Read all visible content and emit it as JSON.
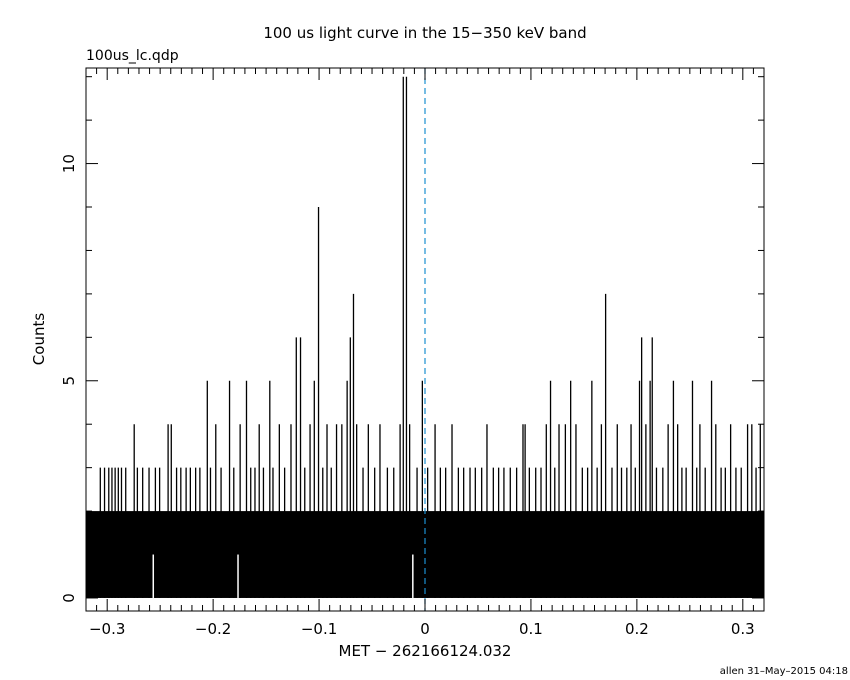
{
  "chart_data": {
    "type": "bar",
    "title": "100 us light curve in the 15−350 keV band",
    "subtitle": "100us_lc.qdp",
    "xlabel": "MET − 262166124.032",
    "ylabel": "Counts",
    "footer": "allen 31–May–2015 04:18",
    "xlim": [
      -0.32,
      0.32
    ],
    "ylim": [
      -0.3,
      12.2
    ],
    "x_ticks": [
      -0.3,
      -0.2,
      -0.1,
      0,
      0.1,
      0.2,
      0.3
    ],
    "x_tick_labels": [
      "−0.3",
      "−0.2",
      "−0.1",
      "0",
      "0.1",
      "0.2",
      "0.3"
    ],
    "y_ticks": [
      0,
      5,
      10
    ],
    "y_tick_labels": [
      "0",
      "5",
      "10"
    ],
    "bin_width": 0.0001,
    "marker_line": {
      "x": 0,
      "color": "#1a8fd0",
      "style": "dashed"
    },
    "baseline_level": 2,
    "zero_bins": [
      -0.2565,
      -0.1765,
      -0.0115
    ],
    "spikes": [
      {
        "x": -0.3065,
        "y": 3
      },
      {
        "x": -0.3025,
        "y": 3
      },
      {
        "x": -0.2985,
        "y": 3
      },
      {
        "x": -0.2955,
        "y": 3
      },
      {
        "x": -0.2925,
        "y": 3
      },
      {
        "x": -0.2895,
        "y": 3
      },
      {
        "x": -0.2865,
        "y": 3
      },
      {
        "x": -0.2825,
        "y": 3
      },
      {
        "x": -0.2745,
        "y": 4
      },
      {
        "x": -0.2715,
        "y": 3
      },
      {
        "x": -0.2665,
        "y": 3
      },
      {
        "x": -0.2605,
        "y": 3
      },
      {
        "x": -0.2545,
        "y": 3
      },
      {
        "x": -0.2505,
        "y": 3
      },
      {
        "x": -0.2425,
        "y": 4
      },
      {
        "x": -0.2395,
        "y": 4
      },
      {
        "x": -0.2345,
        "y": 3
      },
      {
        "x": -0.2305,
        "y": 3
      },
      {
        "x": -0.2255,
        "y": 3
      },
      {
        "x": -0.2215,
        "y": 3
      },
      {
        "x": -0.2165,
        "y": 3
      },
      {
        "x": -0.2125,
        "y": 3
      },
      {
        "x": -0.2055,
        "y": 5
      },
      {
        "x": -0.2025,
        "y": 3
      },
      {
        "x": -0.1975,
        "y": 4
      },
      {
        "x": -0.1925,
        "y": 3
      },
      {
        "x": -0.1845,
        "y": 5
      },
      {
        "x": -0.1805,
        "y": 3
      },
      {
        "x": -0.1745,
        "y": 4
      },
      {
        "x": -0.1685,
        "y": 5
      },
      {
        "x": -0.1645,
        "y": 3
      },
      {
        "x": -0.1605,
        "y": 3
      },
      {
        "x": -0.1565,
        "y": 4
      },
      {
        "x": -0.1525,
        "y": 3
      },
      {
        "x": -0.1465,
        "y": 5
      },
      {
        "x": -0.1435,
        "y": 3
      },
      {
        "x": -0.1375,
        "y": 4
      },
      {
        "x": -0.1325,
        "y": 3
      },
      {
        "x": -0.1265,
        "y": 4
      },
      {
        "x": -0.1215,
        "y": 6
      },
      {
        "x": -0.1175,
        "y": 6
      },
      {
        "x": -0.1135,
        "y": 3
      },
      {
        "x": -0.1085,
        "y": 4
      },
      {
        "x": -0.1045,
        "y": 5
      },
      {
        "x": -0.1005,
        "y": 9
      },
      {
        "x": -0.0965,
        "y": 3
      },
      {
        "x": -0.0925,
        "y": 4
      },
      {
        "x": -0.0885,
        "y": 3
      },
      {
        "x": -0.0835,
        "y": 4
      },
      {
        "x": -0.0785,
        "y": 4
      },
      {
        "x": -0.0735,
        "y": 5
      },
      {
        "x": -0.0705,
        "y": 6
      },
      {
        "x": -0.0675,
        "y": 7
      },
      {
        "x": -0.0645,
        "y": 4
      },
      {
        "x": -0.0585,
        "y": 3
      },
      {
        "x": -0.0535,
        "y": 4
      },
      {
        "x": -0.0475,
        "y": 3
      },
      {
        "x": -0.0425,
        "y": 4
      },
      {
        "x": -0.0355,
        "y": 3
      },
      {
        "x": -0.0295,
        "y": 3
      },
      {
        "x": -0.0235,
        "y": 4
      },
      {
        "x": -0.0205,
        "y": 12
      },
      {
        "x": -0.0175,
        "y": 12
      },
      {
        "x": -0.0145,
        "y": 4
      },
      {
        "x": -0.0075,
        "y": 3
      },
      {
        "x": -0.0025,
        "y": 5
      },
      {
        "x": 0.0025,
        "y": 3
      },
      {
        "x": 0.0095,
        "y": 4
      },
      {
        "x": 0.0145,
        "y": 3
      },
      {
        "x": 0.0195,
        "y": 3
      },
      {
        "x": 0.0255,
        "y": 4
      },
      {
        "x": 0.0315,
        "y": 3
      },
      {
        "x": 0.0365,
        "y": 3
      },
      {
        "x": 0.0425,
        "y": 3
      },
      {
        "x": 0.0475,
        "y": 3
      },
      {
        "x": 0.0535,
        "y": 3
      },
      {
        "x": 0.0585,
        "y": 4
      },
      {
        "x": 0.0645,
        "y": 3
      },
      {
        "x": 0.0695,
        "y": 3
      },
      {
        "x": 0.0745,
        "y": 3
      },
      {
        "x": 0.0805,
        "y": 3
      },
      {
        "x": 0.0865,
        "y": 3
      },
      {
        "x": 0.0925,
        "y": 4
      },
      {
        "x": 0.0945,
        "y": 4
      },
      {
        "x": 0.0985,
        "y": 3
      },
      {
        "x": 0.1045,
        "y": 3
      },
      {
        "x": 0.1095,
        "y": 3
      },
      {
        "x": 0.1145,
        "y": 4
      },
      {
        "x": 0.1185,
        "y": 5
      },
      {
        "x": 0.1225,
        "y": 3
      },
      {
        "x": 0.1265,
        "y": 4
      },
      {
        "x": 0.1325,
        "y": 4
      },
      {
        "x": 0.1375,
        "y": 5
      },
      {
        "x": 0.1425,
        "y": 4
      },
      {
        "x": 0.1485,
        "y": 3
      },
      {
        "x": 0.1535,
        "y": 3
      },
      {
        "x": 0.1575,
        "y": 5
      },
      {
        "x": 0.1625,
        "y": 3
      },
      {
        "x": 0.1665,
        "y": 4
      },
      {
        "x": 0.1705,
        "y": 7
      },
      {
        "x": 0.1765,
        "y": 3
      },
      {
        "x": 0.1815,
        "y": 4
      },
      {
        "x": 0.1855,
        "y": 3
      },
      {
        "x": 0.1905,
        "y": 3
      },
      {
        "x": 0.1945,
        "y": 4
      },
      {
        "x": 0.1985,
        "y": 3
      },
      {
        "x": 0.2025,
        "y": 5
      },
      {
        "x": 0.2045,
        "y": 6
      },
      {
        "x": 0.2085,
        "y": 4
      },
      {
        "x": 0.2125,
        "y": 5
      },
      {
        "x": 0.2145,
        "y": 6
      },
      {
        "x": 0.2185,
        "y": 3
      },
      {
        "x": 0.2245,
        "y": 3
      },
      {
        "x": 0.2295,
        "y": 4
      },
      {
        "x": 0.2345,
        "y": 5
      },
      {
        "x": 0.2385,
        "y": 4
      },
      {
        "x": 0.2425,
        "y": 3
      },
      {
        "x": 0.2465,
        "y": 3
      },
      {
        "x": 0.2525,
        "y": 5
      },
      {
        "x": 0.2565,
        "y": 3
      },
      {
        "x": 0.2595,
        "y": 4
      },
      {
        "x": 0.2645,
        "y": 3
      },
      {
        "x": 0.2705,
        "y": 5
      },
      {
        "x": 0.2745,
        "y": 4
      },
      {
        "x": 0.2795,
        "y": 3
      },
      {
        "x": 0.2835,
        "y": 3
      },
      {
        "x": 0.2885,
        "y": 4
      },
      {
        "x": 0.2935,
        "y": 3
      },
      {
        "x": 0.2985,
        "y": 3
      },
      {
        "x": 0.3045,
        "y": 4
      },
      {
        "x": 0.3085,
        "y": 4
      },
      {
        "x": 0.3125,
        "y": 3
      },
      {
        "x": 0.3165,
        "y": 4
      }
    ],
    "grid": false
  }
}
